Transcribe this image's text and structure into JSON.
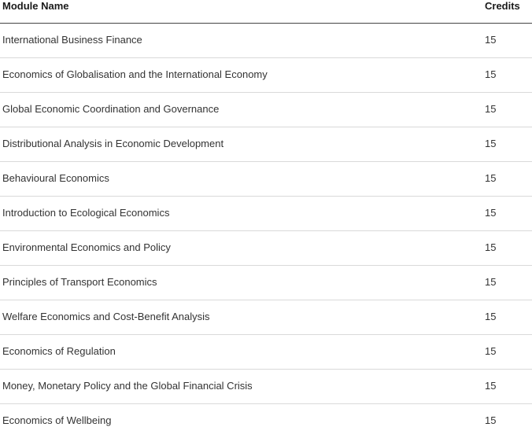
{
  "table": {
    "headers": {
      "module_name": "Module Name",
      "credits": "Credits"
    },
    "rows": [
      {
        "module": "International Business Finance",
        "credits": "15"
      },
      {
        "module": "Economics of Globalisation and the International Economy",
        "credits": "15"
      },
      {
        "module": "Global Economic Coordination and Governance",
        "credits": "15"
      },
      {
        "module": "Distributional Analysis in Economic Development",
        "credits": "15"
      },
      {
        "module": "Behavioural Economics",
        "credits": "15"
      },
      {
        "module": "Introduction to Ecological Economics",
        "credits": "15"
      },
      {
        "module": "Environmental Economics and Policy",
        "credits": "15"
      },
      {
        "module": "Principles of Transport Economics",
        "credits": "15"
      },
      {
        "module": "Welfare Economics and Cost-Benefit Analysis",
        "credits": "15"
      },
      {
        "module": "Economics of Regulation",
        "credits": "15"
      },
      {
        "module": "Money, Monetary Policy and the Global Financial Crisis",
        "credits": "15"
      },
      {
        "module": "Economics of Wellbeing",
        "credits": "15"
      }
    ]
  },
  "colors": {
    "header_rule": "#444444",
    "row_rule": "#d9d9d9",
    "text": "#333333"
  }
}
